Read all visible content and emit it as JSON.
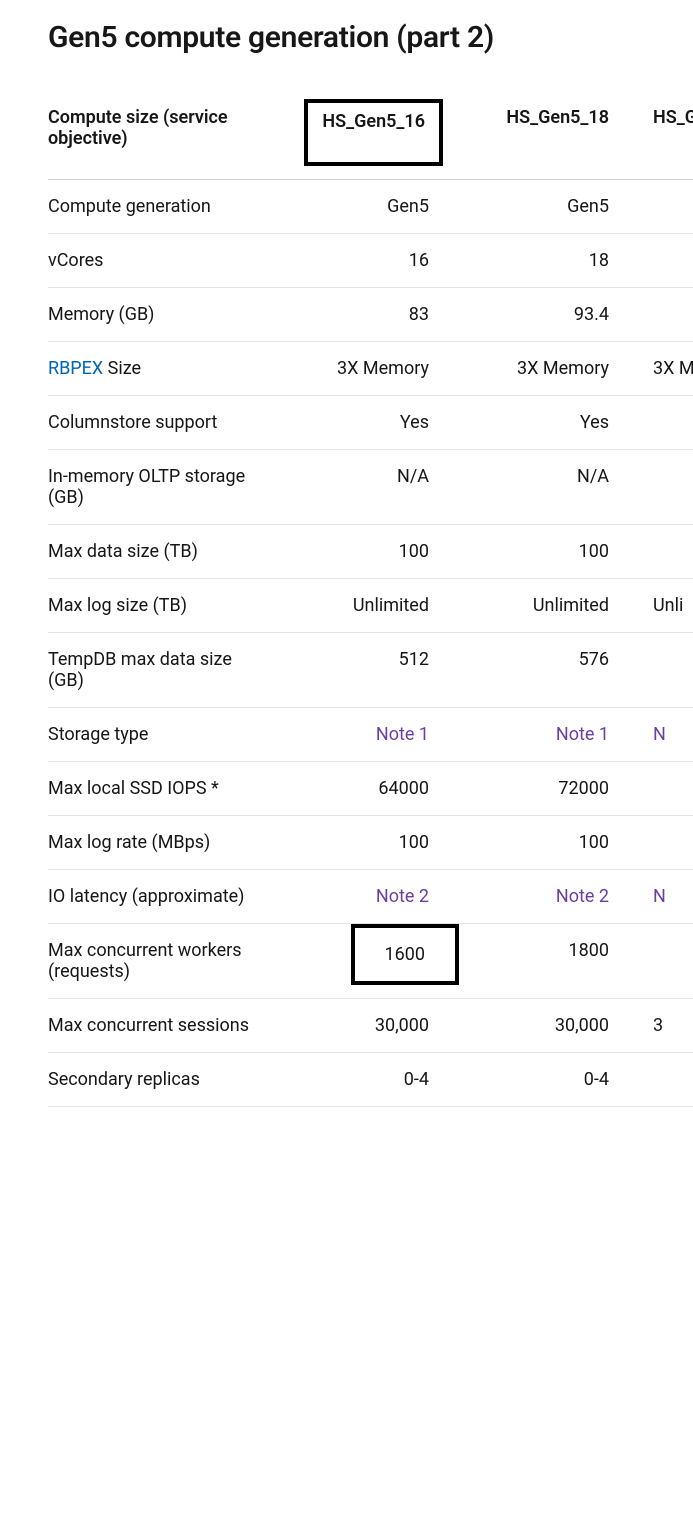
{
  "title": "Gen5 compute generation (part 2)",
  "table": {
    "header": {
      "label": "Compute size (service objective)",
      "col1": "HS_Gen5_16",
      "col2": "HS_Gen5_18",
      "col3": "HS_Ge"
    },
    "rows": [
      {
        "label": "Compute generation",
        "c1": "Gen5",
        "c2": "Gen5",
        "c3": "",
        "type": "text"
      },
      {
        "label": "vCores",
        "c1": "16",
        "c2": "18",
        "c3": "",
        "type": "text"
      },
      {
        "label": "Memory (GB)",
        "c1": "83",
        "c2": "93.4",
        "c3": "",
        "type": "text"
      },
      {
        "label_link": "RBPEX",
        "label_suffix": " Size",
        "c1": "3X Memory",
        "c2": "3X Memory",
        "c3": "3X M",
        "type": "rbpex"
      },
      {
        "label": "Columnstore support",
        "c1": "Yes",
        "c2": "Yes",
        "c3": "",
        "type": "text"
      },
      {
        "label": "In-memory OLTP storage (GB)",
        "c1": "N/A",
        "c2": "N/A",
        "c3": "",
        "type": "text"
      },
      {
        "label": "Max data size (TB)",
        "c1": "100",
        "c2": "100",
        "c3": "",
        "type": "text"
      },
      {
        "label": "Max log size (TB)",
        "c1": "Unlimited",
        "c2": "Unlimited",
        "c3": "Unli",
        "type": "text"
      },
      {
        "label": "TempDB max data size (GB)",
        "c1": "512",
        "c2": "576",
        "c3": "",
        "type": "text"
      },
      {
        "label": "Storage type",
        "c1": "Note 1",
        "c2": "Note 1",
        "c3": "N",
        "type": "note"
      },
      {
        "label": "Max local SSD IOPS *",
        "c1": "64000",
        "c2": "72000",
        "c3": "",
        "type": "text"
      },
      {
        "label": "Max log rate (MBps)",
        "c1": "100",
        "c2": "100",
        "c3": "",
        "type": "text"
      },
      {
        "label": "IO latency (approximate)",
        "c1": "Note 2",
        "c2": "Note 2",
        "c3": "N",
        "type": "note"
      },
      {
        "label": "Max concurrent workers (requests)",
        "c1": "1600",
        "c2": "1800",
        "c3": "",
        "type": "text",
        "highlight_c1": true
      },
      {
        "label": "Max concurrent sessions",
        "c1": "30,000",
        "c2": "30,000",
        "c3": "3",
        "type": "text"
      },
      {
        "label": "Secondary replicas",
        "c1": "0-4",
        "c2": "0-4",
        "c3": "",
        "type": "text"
      }
    ]
  },
  "colors": {
    "text": "#161616",
    "link": "#0065b3",
    "note_link": "#6b3fa0",
    "border": "#e5e5e5",
    "highlight_border": "#000000",
    "background": "#ffffff"
  }
}
